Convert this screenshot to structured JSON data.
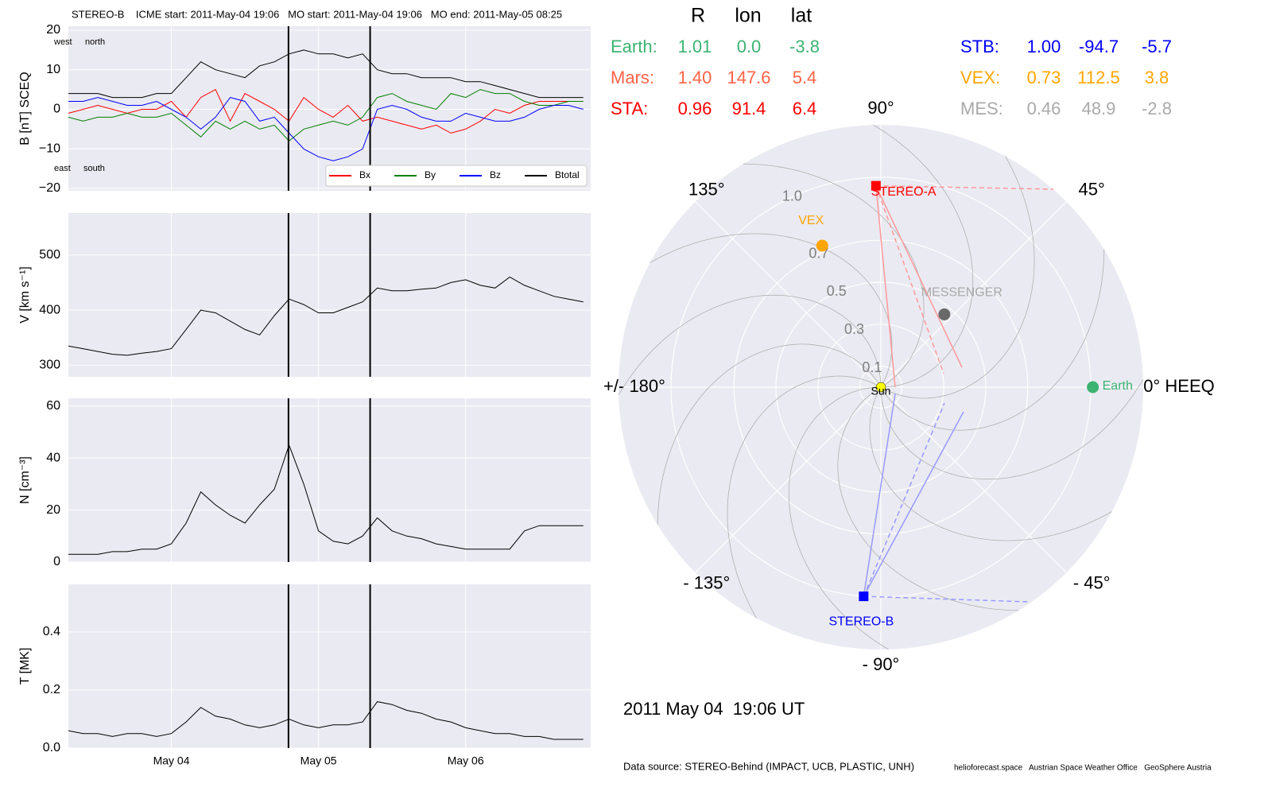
{
  "chart_data": [
    {
      "type": "line",
      "title": "STEREO-B    ICME start: 2011-May-04 19:06   MO start: 2011-May-04 19:06   MO end: 2011-May-05 08:25",
      "ylabel": "B [nT] SCEQ",
      "annotations": [
        "west",
        "north",
        "east",
        "south"
      ],
      "ylim": [
        -20.6,
        21
      ],
      "yticks": [
        {
          "value": -20,
          "label": "−20"
        },
        {
          "value": -10,
          "label": "−10"
        },
        0,
        10,
        20
      ],
      "legend": "lower right",
      "series": [
        {
          "name": "Bx",
          "color": "#ff0000",
          "values": [
            -1,
            0,
            1,
            0,
            -1,
            0,
            0,
            2,
            -2,
            3,
            5,
            -3,
            4,
            2,
            0,
            -3,
            3,
            0,
            -2,
            1,
            -3,
            -2,
            -3,
            -4,
            -5,
            -4,
            -6,
            -5,
            -3,
            0,
            -1,
            1,
            2,
            2,
            2,
            2
          ]
        },
        {
          "name": "By",
          "color": "#008000",
          "values": [
            -2,
            -3,
            -2,
            -2,
            -1,
            -2,
            -2,
            -1,
            -4,
            -7,
            -3,
            -5,
            -3,
            -5,
            -4,
            -8,
            -5,
            -4,
            -3,
            -4,
            -2,
            3,
            4,
            2,
            1,
            0,
            4,
            3,
            5,
            4,
            4,
            2,
            1,
            1,
            2,
            2
          ]
        },
        {
          "name": "Bz",
          "color": "#0000ff",
          "values": [
            2,
            2,
            3,
            2,
            1,
            1,
            2,
            0,
            -2,
            -5,
            -2,
            3,
            2,
            -3,
            -2,
            -6,
            -10,
            -12,
            -13,
            -12,
            -10,
            0,
            1,
            0,
            -2,
            -3,
            -3,
            -1,
            -2,
            -3,
            -3,
            -2,
            0,
            1,
            1,
            0
          ]
        },
        {
          "name": "Btotal",
          "color": "#000000",
          "values": [
            4,
            4,
            4,
            3,
            3,
            3,
            4,
            4,
            8,
            12,
            10,
            9,
            8,
            11,
            12,
            14,
            15,
            14,
            14,
            13,
            14,
            10,
            9,
            9,
            8,
            8,
            8,
            7,
            7,
            6,
            5,
            4,
            3,
            3,
            3,
            3
          ]
        }
      ]
    },
    {
      "type": "line",
      "ylabel": "V [km s⁻¹]",
      "ylim": [
        279,
        576
      ],
      "yticks": [
        300,
        400,
        500
      ],
      "color": "#000000",
      "values": [
        335,
        330,
        325,
        320,
        318,
        322,
        325,
        330,
        365,
        400,
        395,
        380,
        365,
        355,
        390,
        420,
        410,
        395,
        395,
        405,
        415,
        440,
        435,
        435,
        438,
        440,
        450,
        455,
        445,
        440,
        460,
        445,
        435,
        425,
        420,
        415
      ]
    },
    {
      "type": "line",
      "ylabel": "N [cm⁻³]",
      "ylim": [
        0,
        63
      ],
      "yticks": [
        0,
        20,
        40,
        60
      ],
      "color": "#000000",
      "values": [
        3,
        3,
        3,
        4,
        4,
        5,
        5,
        7,
        15,
        27,
        22,
        18,
        15,
        22,
        28,
        45,
        30,
        12,
        8,
        7,
        10,
        17,
        12,
        10,
        9,
        7,
        6,
        5,
        5,
        5,
        5,
        12,
        14,
        14,
        14,
        14
      ]
    },
    {
      "type": "line",
      "ylabel": "T [MK]",
      "ylim": [
        0,
        0.564
      ],
      "yticks": [
        {
          "value": 0,
          "label": "0.0"
        },
        0.2,
        0.4
      ],
      "color": "#000000",
      "values": [
        0.06,
        0.05,
        0.05,
        0.04,
        0.05,
        0.05,
        0.04,
        0.05,
        0.09,
        0.14,
        0.11,
        0.1,
        0.08,
        0.07,
        0.08,
        0.1,
        0.08,
        0.07,
        0.08,
        0.08,
        0.09,
        0.16,
        0.15,
        0.13,
        0.12,
        0.1,
        0.09,
        0.07,
        0.06,
        0.05,
        0.05,
        0.04,
        0.04,
        0.03,
        0.03,
        0.03
      ],
      "x": [
        3.3,
        3.4,
        3.5,
        3.6,
        3.7,
        3.8,
        3.9,
        4.0,
        4.1,
        4.2,
        4.3,
        4.4,
        4.5,
        4.6,
        4.7,
        4.8,
        4.9,
        5.0,
        5.1,
        5.2,
        5.3,
        5.4,
        5.5,
        5.6,
        5.7,
        5.8,
        5.9,
        6.0,
        6.1,
        6.2,
        6.3,
        6.4,
        6.5,
        6.6,
        6.7,
        6.8
      ],
      "xlim": [
        3.3,
        6.85
      ],
      "xticks": [
        {
          "value": 4,
          "label": "May 04"
        },
        {
          "value": 5,
          "label": "May 05"
        },
        {
          "value": 6,
          "label": "May 06"
        }
      ],
      "events": [
        4.796,
        5.351
      ]
    },
    {
      "type": "polar",
      "rlim": [
        0,
        1.25
      ],
      "rticks": [
        0.1,
        0.3,
        0.5,
        0.7,
        {
          "value": 1,
          "label": "1.0"
        }
      ],
      "angleticks": [
        {
          "value": 0,
          "label": "0° HEEQ"
        },
        {
          "value": 45,
          "label": "45°"
        },
        {
          "value": 90,
          "label": "90°"
        },
        {
          "value": 135,
          "label": "135°"
        },
        {
          "value": 180,
          "label": "+/- 180°"
        },
        {
          "value": -135,
          "label": "- 135°"
        },
        {
          "value": -90,
          "label": "- 90°"
        },
        {
          "value": -45,
          "label": "- 45°"
        }
      ],
      "bodies": [
        {
          "name": "Sun",
          "r": 0,
          "lon": 0,
          "color": "#ffff00",
          "marker": "circle"
        },
        {
          "name": "STEREO-A",
          "r": 0.96,
          "lon": 91.4,
          "color": "#ff0000",
          "marker": "square"
        },
        {
          "name": "VEX",
          "r": 0.73,
          "lon": 112.5,
          "color": "#ffa500",
          "marker": "circle"
        },
        {
          "name": "MESSENGER",
          "r": 0.46,
          "lon": 48.9,
          "color": "#696969",
          "marker": "circle"
        },
        {
          "name": "Earth",
          "r": 1.01,
          "lon": 0,
          "color": "#3cb371",
          "marker": "circle"
        },
        {
          "name": "STEREO-B",
          "r": 1.0,
          "lon": -94.7,
          "color": "#0000ff",
          "marker": "square"
        }
      ]
    }
  ],
  "positions": {
    "header": [
      "R",
      "lon",
      "lat"
    ],
    "rows": [
      {
        "label": "Earth:",
        "color": "#3cb371",
        "values": [
          "1.01",
          "0.0",
          "-3.8"
        ]
      },
      {
        "label": "Mars:",
        "color": "#ff6347",
        "values": [
          "1.40",
          "147.6",
          "5.4"
        ]
      },
      {
        "label": "STA:",
        "color": "#ff0000",
        "values": [
          "0.96",
          "91.4",
          "6.4"
        ]
      },
      {
        "label": "STB:",
        "color": "#0000ff",
        "values": [
          "1.00",
          "-94.7",
          "-5.7"
        ]
      },
      {
        "label": "VEX:",
        "color": "#ffa500",
        "values": [
          "0.73",
          "112.5",
          "3.8"
        ]
      },
      {
        "label": "MES:",
        "color": "#a9a9a9",
        "values": [
          "0.46",
          "48.9",
          "-2.8"
        ]
      }
    ]
  },
  "date": "2011 May 04  19:06 UT",
  "footer": {
    "source": "Data source: STEREO-Behind (IMPACT, UCB, PLASTIC, UNH)",
    "credits": "helioforecast.space   Austrian Space Weather Office   GeoSphere Austria"
  }
}
